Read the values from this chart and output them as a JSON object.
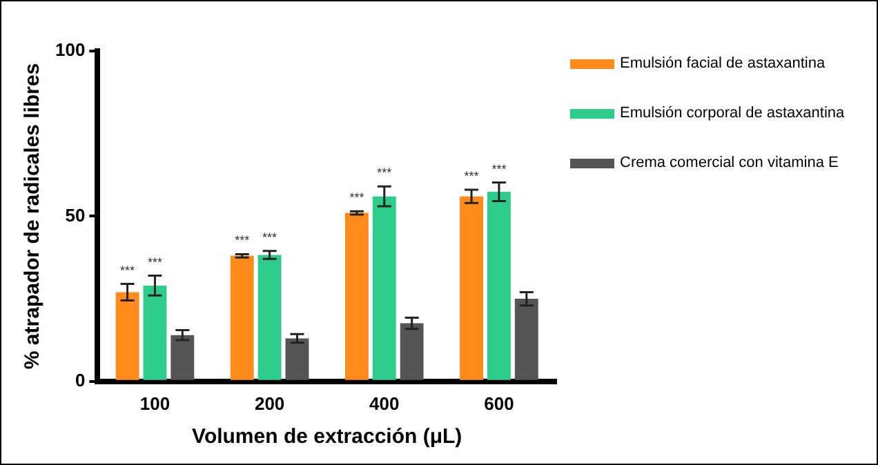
{
  "chart_data": {
    "type": "bar",
    "xlabel": "Volumen de extracción (μL)",
    "ylabel": "% atrapador de radicales libres",
    "categories": [
      "100",
      "200",
      "400",
      "600"
    ],
    "series": [
      {
        "name": "Emulsión facial de astaxantina",
        "color": "#ff8c1a",
        "values": [
          27,
          38,
          51,
          56
        ],
        "errors": [
          2.5,
          0.5,
          0.5,
          2
        ]
      },
      {
        "name": "Emulsión corporal de astaxantina",
        "color": "#2ecc8a",
        "values": [
          29,
          38.3,
          56,
          57.4
        ],
        "errors": [
          3,
          1.2,
          3,
          2.8
        ]
      },
      {
        "name": "Crema comercial con vitamina E",
        "color": "#555555",
        "values": [
          14,
          13,
          17.6,
          25
        ],
        "errors": [
          1.5,
          1.3,
          1.7,
          2
        ]
      }
    ],
    "ylim": [
      0,
      100
    ],
    "yticks": [
      0,
      50,
      100
    ],
    "grid": false,
    "legend": "right",
    "annotations": [
      {
        "text": "***",
        "x": "100",
        "y": 27
      },
      {
        "text": "***",
        "x": "100",
        "y": 29
      },
      {
        "text": "***",
        "x": "200",
        "y": 38
      },
      {
        "text": "***",
        "x": "200",
        "y": 38.3
      },
      {
        "text": "***",
        "x": "400",
        "y": 51
      },
      {
        "text": "***",
        "x": "400",
        "y": 56
      },
      {
        "text": "***",
        "x": "600",
        "y": 56
      },
      {
        "text": "***",
        "x": "600",
        "y": 57.4
      }
    ]
  }
}
